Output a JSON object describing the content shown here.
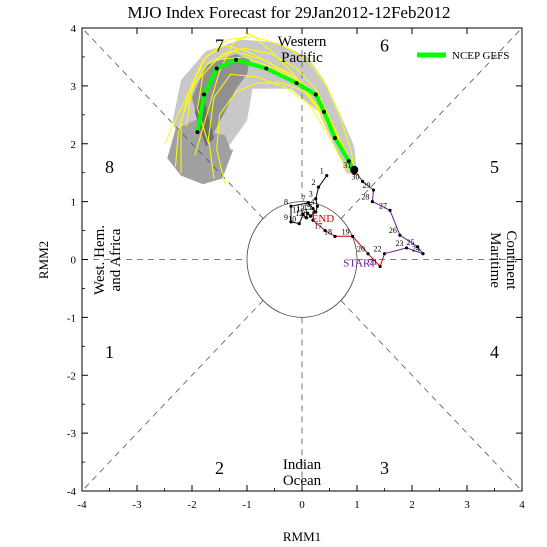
{
  "chart_data": {
    "type": "scatter",
    "title": "MJO Index Forecast for 29Jan2012-12Feb2012",
    "xlabel": "RMM1",
    "ylabel": "RMM2",
    "xlim": [
      -4,
      4
    ],
    "ylim": [
      -4,
      4
    ],
    "xticks": [
      "-4",
      "-3",
      "-2",
      "-1",
      "0",
      "1",
      "2",
      "3",
      "4"
    ],
    "yticks": [
      "-4",
      "-3",
      "-2",
      "-1",
      "0",
      "1",
      "2",
      "3",
      "4"
    ],
    "grid": false,
    "legend_position": "top-right",
    "legend": [
      {
        "name": "NCEP GEFS",
        "color": "#00ff00"
      }
    ],
    "phase_numbers": [
      {
        "label": "1",
        "x": -3.5,
        "y": -1.6
      },
      {
        "label": "2",
        "x": -1.5,
        "y": -3.6
      },
      {
        "label": "3",
        "x": 1.5,
        "y": -3.6
      },
      {
        "label": "4",
        "x": 3.5,
        "y": -1.6
      },
      {
        "label": "5",
        "x": 3.5,
        "y": 1.6
      },
      {
        "label": "6",
        "x": 1.5,
        "y": 3.7
      },
      {
        "label": "7",
        "x": -1.5,
        "y": 3.7
      },
      {
        "label": "8",
        "x": -3.5,
        "y": 1.6
      }
    ],
    "region_labels": {
      "top": [
        "Western",
        "Pacific"
      ],
      "bottom": [
        "Indian",
        "Ocean"
      ],
      "left": [
        "West. Hem.",
        "and Africa"
      ],
      "right": [
        "Maritime",
        "Continent"
      ]
    },
    "annotations": [
      "START",
      "END"
    ],
    "observed": {
      "color": "#cc0000",
      "segments": [
        {
          "color": "#000000",
          "points": [
            {
              "label": "1",
              "x": 0.45,
              "y": 1.45
            },
            {
              "label": "2",
              "x": 0.3,
              "y": 1.25
            },
            {
              "label": "3",
              "x": 0.25,
              "y": 1.05
            },
            {
              "label": "4",
              "x": 0.28,
              "y": 0.92
            },
            {
              "label": "5",
              "x": 0.25,
              "y": 0.82
            },
            {
              "label": "6",
              "x": 0.2,
              "y": 0.88
            },
            {
              "label": "7",
              "x": 0.12,
              "y": 0.98
            }
          ]
        },
        {
          "color": "#000000",
          "points": [
            {
              "label": "8",
              "x": -0.2,
              "y": 0.92
            },
            {
              "label": "9",
              "x": -0.2,
              "y": 0.65
            },
            {
              "label": "10",
              "x": -0.05,
              "y": 0.62
            },
            {
              "label": "11",
              "x": 0.02,
              "y": 0.78
            },
            {
              "label": "12",
              "x": 0.08,
              "y": 0.72
            },
            {
              "label": "13",
              "x": 0.1,
              "y": 0.8
            },
            {
              "label": "14",
              "x": 0.16,
              "y": 0.75
            },
            {
              "label": "15",
              "x": 0.22,
              "y": 0.82
            }
          ]
        },
        {
          "color": "#cc0000",
          "points": [
            {
              "label": "16",
              "x": 0.2,
              "y": 0.68
            },
            {
              "label": "17",
              "x": 0.42,
              "y": 0.5
            },
            {
              "label": "18",
              "x": 0.6,
              "y": 0.4
            },
            {
              "label": "19",
              "x": 0.92,
              "y": 0.4
            },
            {
              "label": "20",
              "x": 1.2,
              "y": 0.1
            },
            {
              "label": "21",
              "x": 1.42,
              "y": -0.12
            },
            {
              "label": "22",
              "x": 1.5,
              "y": 0.1
            }
          ]
        },
        {
          "color": "#6a1b9a",
          "points": [
            {
              "label": "23",
              "x": 1.9,
              "y": 0.2
            },
            {
              "label": "24",
              "x": 2.2,
              "y": 0.1
            },
            {
              "label": "25",
              "x": 2.1,
              "y": 0.22
            },
            {
              "label": "26",
              "x": 1.78,
              "y": 0.42
            },
            {
              "label": "27",
              "x": 1.6,
              "y": 0.85
            },
            {
              "label": "28",
              "x": 1.28,
              "y": 1.0
            },
            {
              "label": "29",
              "x": 1.3,
              "y": 1.2
            },
            {
              "label": "30",
              "x": 1.1,
              "y": 1.35
            },
            {
              "label": "31",
              "x": 0.95,
              "y": 1.55
            }
          ]
        }
      ]
    },
    "forecast_mean": {
      "name": "NCEP GEFS",
      "color": "#00ff00",
      "x": [
        0.95,
        0.85,
        0.6,
        0.4,
        0.25,
        -0.1,
        -0.65,
        -1.2,
        -1.55,
        -1.78,
        -1.9
      ],
      "y": [
        1.5,
        1.7,
        2.1,
        2.55,
        2.85,
        3.05,
        3.3,
        3.45,
        3.3,
        2.85,
        2.2
      ]
    },
    "forecast_spread": [
      {
        "shade": "#c8c8c8",
        "x": [
          1.0,
          0.95,
          0.7,
          0.4,
          0.1,
          -0.45,
          -1.1,
          -1.75,
          -2.2,
          -2.35,
          -2.1,
          -1.8,
          -1.3,
          -1.0,
          -0.9,
          -0.2,
          0.3,
          0.55,
          0.7,
          0.8
        ],
        "y": [
          1.45,
          1.95,
          2.5,
          3.1,
          3.5,
          3.75,
          3.8,
          3.6,
          3.1,
          2.4,
          1.6,
          1.5,
          2.0,
          2.4,
          2.95,
          2.95,
          2.55,
          2.05,
          1.75,
          1.5
        ]
      },
      {
        "shade": "#a0a0a0",
        "x": [
          -1.25,
          -1.45,
          -1.8,
          -2.2,
          -2.45,
          -2.3,
          -1.85,
          -1.65,
          -1.4,
          -1.3
        ],
        "y": [
          1.9,
          1.4,
          1.3,
          1.45,
          1.75,
          2.25,
          2.45,
          2.2,
          2.15,
          1.9
        ]
      },
      {
        "shade": "#909090",
        "x": [
          -1.2,
          -1.75,
          -2.0,
          -1.85,
          -1.6,
          -1.4,
          -1.2,
          -1.0,
          -0.95
        ],
        "y": [
          3.55,
          3.35,
          2.8,
          2.2,
          2.2,
          2.55,
          2.95,
          3.2,
          3.45
        ]
      },
      {
        "shade": "#6e6e6e",
        "x": [
          -1.95,
          -1.8,
          -1.6,
          -1.75
        ],
        "y": [
          2.55,
          2.85,
          2.1,
          1.95
        ]
      }
    ],
    "ensemble_members": [
      {
        "color": "#ffff00",
        "x": [
          0.95,
          0.8,
          0.55,
          0.3,
          -0.1,
          -0.6,
          -1.0,
          -1.4,
          -1.75,
          -2.0,
          -2.1
        ],
        "y": [
          1.5,
          1.8,
          2.3,
          2.8,
          3.1,
          3.4,
          3.6,
          3.7,
          3.5,
          3.0,
          2.3
        ]
      },
      {
        "color": "#ffff00",
        "x": [
          0.9,
          0.75,
          0.5,
          0.2,
          -0.2,
          -0.7,
          -1.25,
          -1.7,
          -2.05,
          -2.25,
          -2.3
        ],
        "y": [
          1.55,
          1.9,
          2.4,
          2.9,
          3.2,
          3.45,
          3.6,
          3.4,
          2.9,
          2.2,
          1.6
        ]
      },
      {
        "color": "#ffff00",
        "x": [
          0.85,
          0.7,
          0.45,
          0.15,
          -0.25,
          -0.8,
          -1.3,
          -1.6,
          -1.7,
          -1.6
        ],
        "y": [
          1.5,
          1.75,
          2.2,
          2.65,
          2.95,
          3.15,
          3.2,
          2.8,
          2.1,
          1.4
        ]
      },
      {
        "color": "#ffff00",
        "x": [
          0.95,
          0.9,
          0.7,
          0.45,
          0.1,
          -0.35,
          -0.9,
          -1.35,
          -1.8,
          -2.1,
          -2.5
        ],
        "y": [
          1.5,
          1.85,
          2.45,
          3.0,
          3.45,
          3.7,
          3.85,
          3.8,
          3.45,
          2.8,
          2.0
        ]
      },
      {
        "color": "#ffff00",
        "x": [
          0.9,
          0.65,
          0.35,
          0.05,
          -0.35,
          -0.8,
          -1.2,
          -1.5,
          -1.55,
          -1.4
        ],
        "y": [
          1.6,
          2.0,
          2.5,
          2.9,
          3.05,
          3.05,
          2.9,
          2.5,
          1.9,
          1.3
        ]
      },
      {
        "color": "#ffff00",
        "x": [
          1.0,
          0.85,
          0.65,
          0.35,
          0.0,
          -0.5,
          -1.05,
          -1.55,
          -1.95,
          -2.2,
          -2.2
        ],
        "y": [
          1.45,
          1.7,
          2.1,
          2.55,
          3.0,
          3.3,
          3.5,
          3.45,
          3.05,
          2.4,
          1.5
        ]
      },
      {
        "color": "#ffff00",
        "x": [
          0.95,
          0.8,
          0.55,
          0.2,
          -0.15,
          -0.55,
          -0.95,
          -1.25,
          -1.5,
          -1.7,
          -1.95
        ],
        "y": [
          1.5,
          1.85,
          2.35,
          2.75,
          3.2,
          3.6,
          3.9,
          3.75,
          3.25,
          2.6,
          1.8
        ]
      },
      {
        "color": "#ffff00",
        "x": [
          0.9,
          0.75,
          0.5,
          0.25,
          -0.1,
          -0.55,
          -1.05,
          -1.45,
          -1.8,
          -1.9,
          -1.7
        ],
        "y": [
          1.55,
          1.95,
          2.45,
          2.95,
          3.3,
          3.55,
          3.65,
          3.55,
          3.2,
          2.6,
          2.0
        ]
      }
    ],
    "analysis_start": {
      "x": 0.95,
      "y": 1.55
    }
  }
}
